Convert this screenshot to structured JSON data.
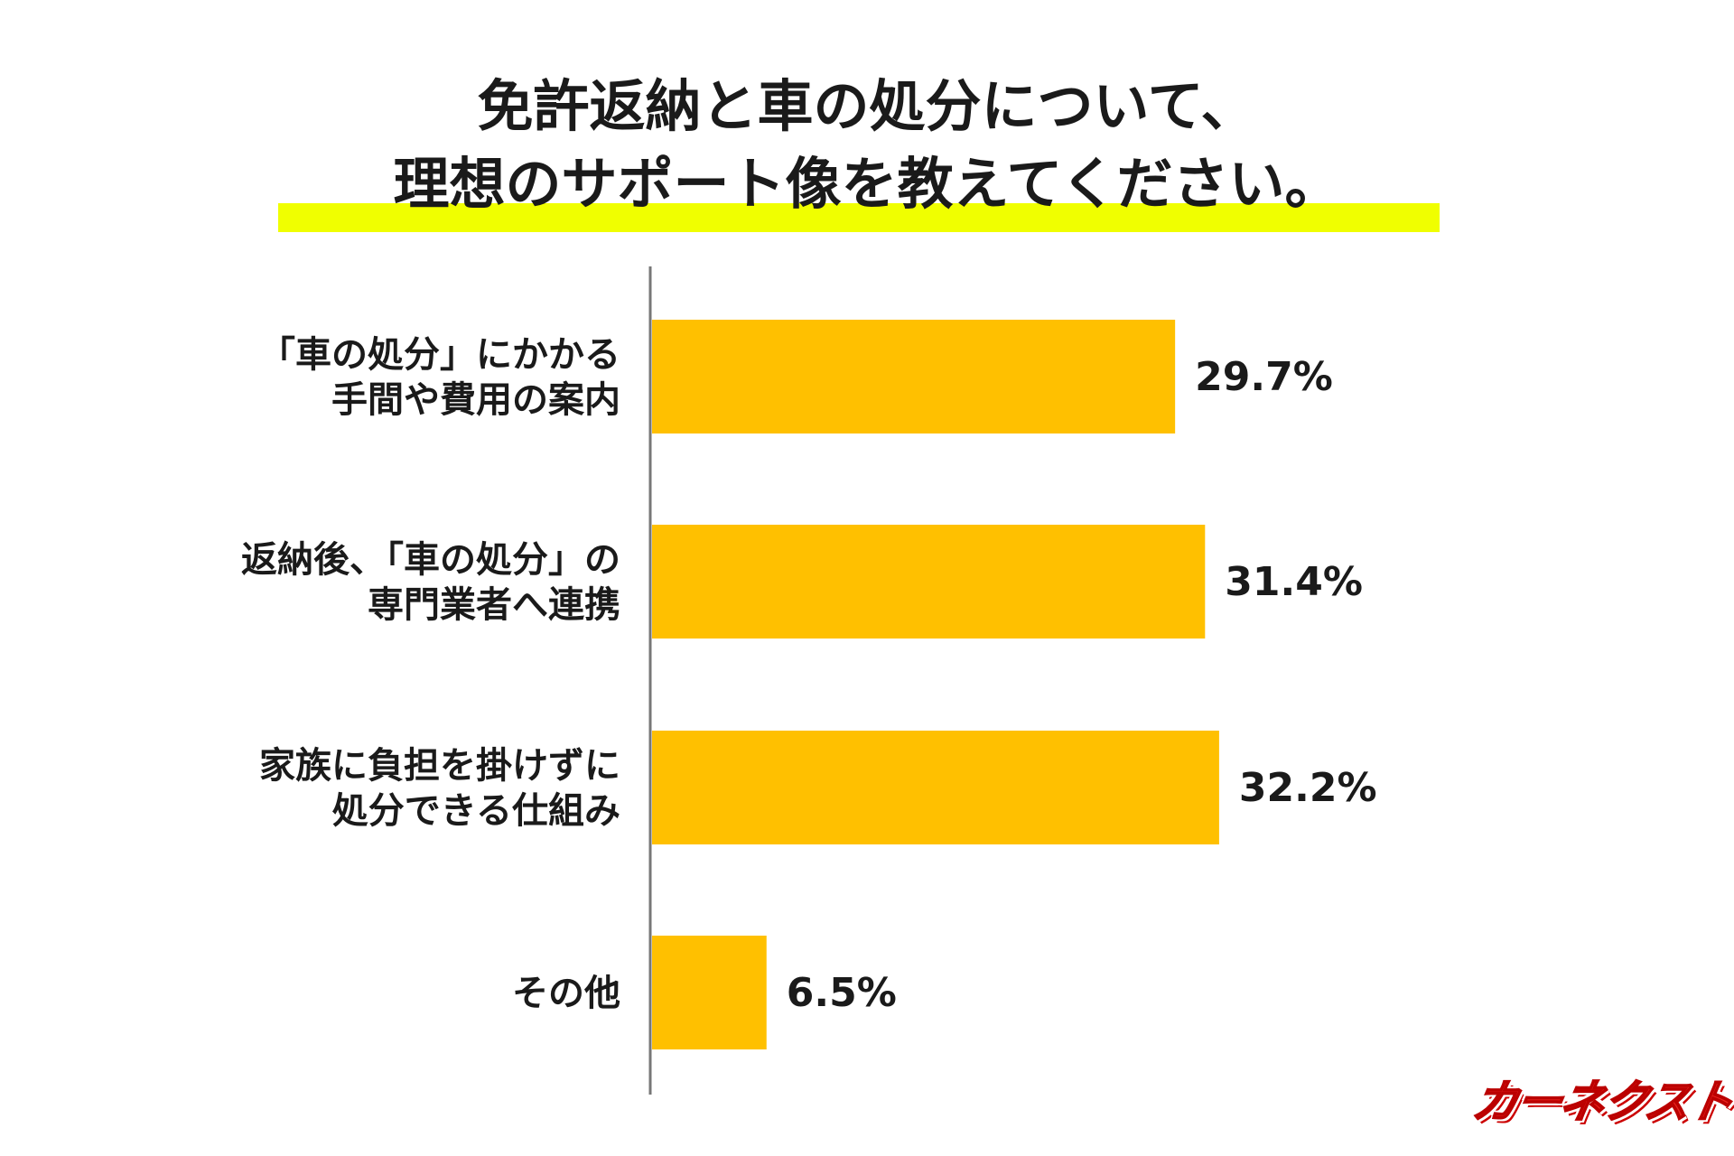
{
  "chart_data": {
    "type": "bar",
    "orientation": "horizontal",
    "title": "免許返納と車の処分について、\n理想のサポート像を教えてください。",
    "title_lines": [
      "免許返納と車の処分について、",
      "理想のサポート像を教えてください。"
    ],
    "categories": [
      [
        "「車の処分」にかかる",
        "手間や費用の案内"
      ],
      [
        "返納後、「車の処分」の",
        "専門業者へ連携"
      ],
      [
        "家族に負担を掛けずに",
        "処分できる仕組み"
      ],
      [
        "その他"
      ]
    ],
    "values": [
      29.7,
      31.4,
      32.2,
      6.5
    ],
    "data_labels": [
      "29.7%",
      "31.4%",
      "32.2%",
      "6.5%"
    ],
    "unit": "%",
    "grid": false,
    "legend": "none",
    "colors": {
      "bar": "#FFC000",
      "title_highlight": "#F0FF00",
      "axis": "#777777"
    }
  },
  "logo": {
    "text": "カーネクスト",
    "color": "#E8231F"
  }
}
